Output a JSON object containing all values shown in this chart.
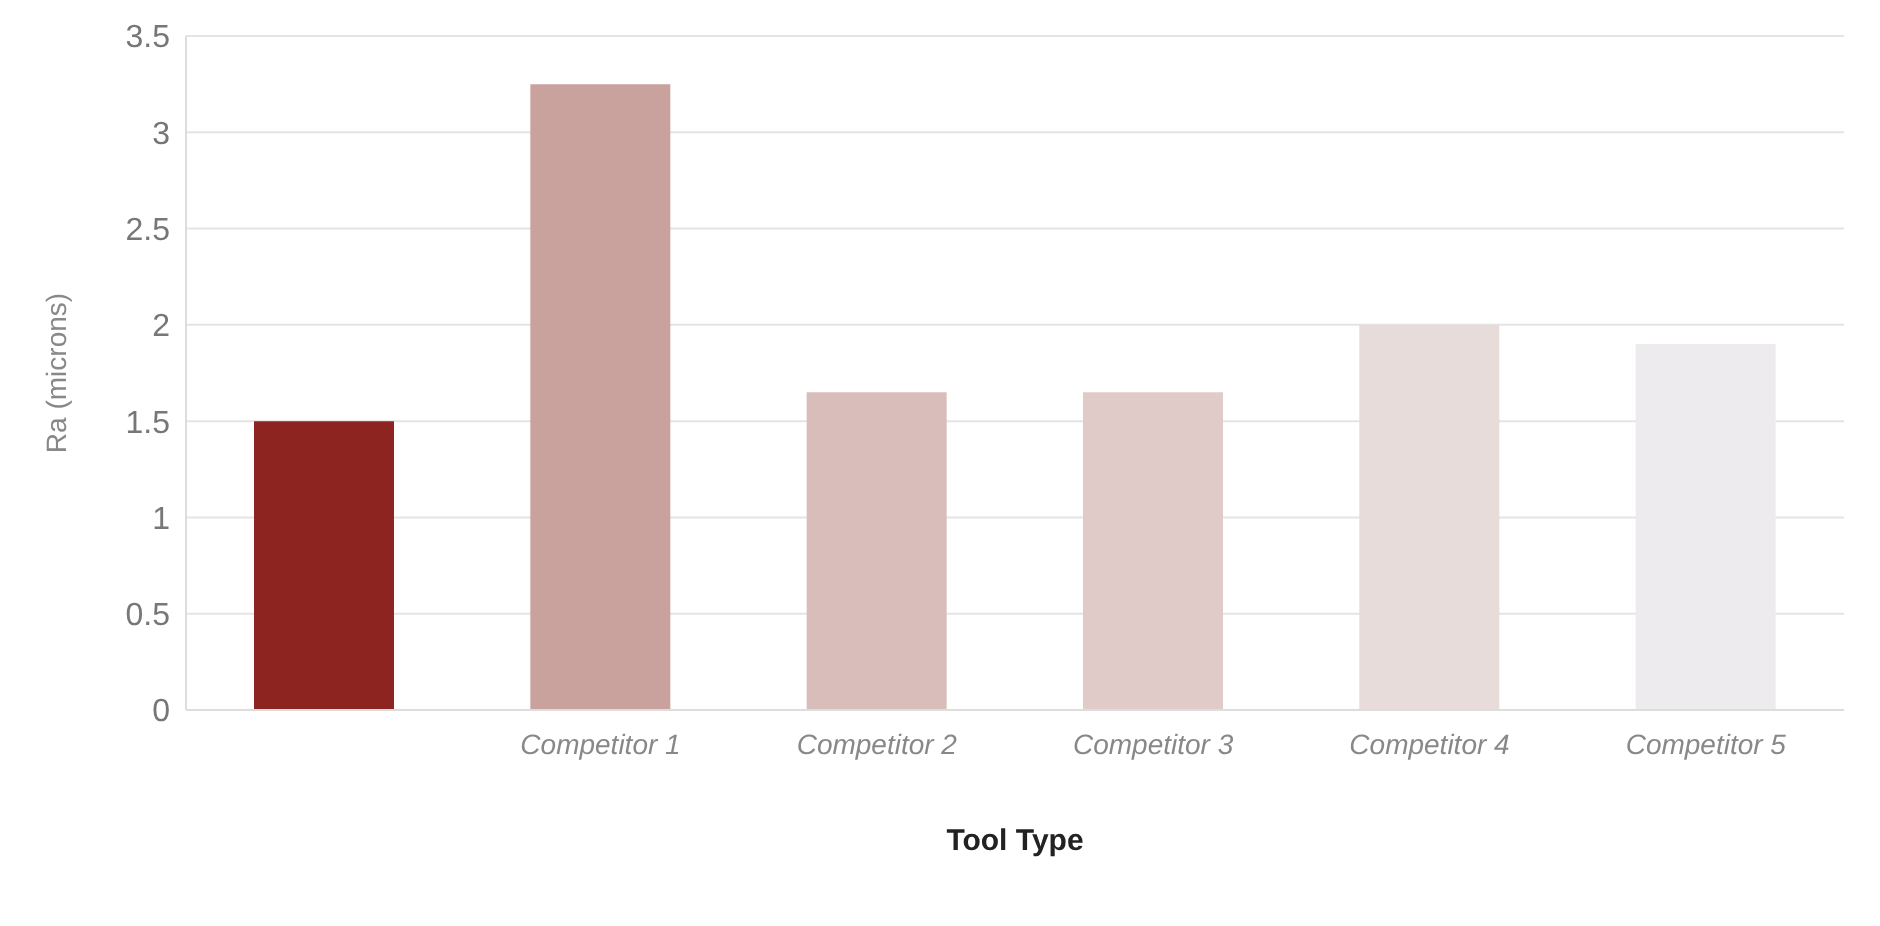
{
  "chart_data": {
    "type": "bar",
    "xlabel": "Tool Type",
    "ylabel": "Ra (microns)",
    "categories": [
      null,
      "Competitor 1",
      "Competitor 2",
      "Competitor 3",
      "Competitor 4",
      "Competitor 5"
    ],
    "values": [
      1.5,
      3.25,
      1.65,
      1.65,
      2.0,
      1.9
    ],
    "colors": [
      "#8e2420",
      "#c9a19d",
      "#d9bdba",
      "#e1cbc9",
      "#e8dcdb",
      "#eeebee"
    ],
    "ylim": [
      0,
      3.5
    ],
    "yticks": [
      0,
      0.5,
      1,
      1.5,
      2,
      2.5,
      3,
      3.5
    ],
    "grid": "y"
  }
}
